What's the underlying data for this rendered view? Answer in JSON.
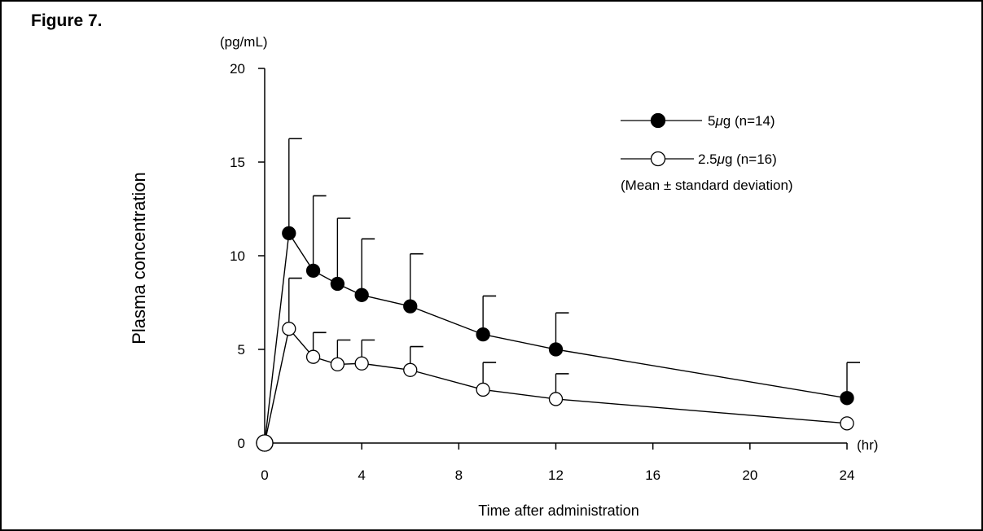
{
  "figure_label": "Figure 7.",
  "chart_data": {
    "type": "line",
    "title": "",
    "xlabel": "Time after administration",
    "ylabel": "Plasma concentration",
    "x_unit": "(hr)",
    "y_unit": "(pg/mL)",
    "xlim": [
      0,
      24
    ],
    "ylim": [
      0,
      20
    ],
    "x_ticks": [
      0,
      4,
      8,
      12,
      16,
      20,
      24
    ],
    "y_ticks": [
      0,
      5,
      10,
      15,
      20
    ],
    "x_tick_labels": [
      "0",
      "4",
      "8",
      "12",
      "16",
      "20",
      "24"
    ],
    "y_tick_labels": [
      "0",
      "5",
      "10",
      "15",
      "20"
    ],
    "grid": false,
    "legend_position": "top-right",
    "legend_note": "(Mean ± standard deviation)",
    "series": [
      {
        "name": "5μg (n=14)",
        "label_prefix": "5",
        "label_unit": "μ",
        "label_suffix": "g (n=14)",
        "marker": "filled-circle",
        "x": [
          0,
          1,
          2,
          3,
          4,
          6,
          9,
          12,
          24
        ],
        "values": [
          0,
          11.2,
          9.2,
          8.5,
          7.9,
          7.3,
          5.8,
          5.0,
          2.4
        ],
        "sd": [
          0,
          5.05,
          4.0,
          3.5,
          3.0,
          2.8,
          2.05,
          1.95,
          1.9
        ]
      },
      {
        "name": "2.5μg (n=16)",
        "label_prefix": "2.5",
        "label_unit": "μ",
        "label_suffix": "g (n=16)",
        "marker": "open-circle",
        "x": [
          0,
          1,
          2,
          3,
          4,
          6,
          9,
          12,
          24
        ],
        "values": [
          0,
          6.1,
          4.6,
          4.2,
          4.25,
          3.9,
          2.85,
          2.35,
          1.05
        ],
        "sd": [
          0,
          2.7,
          1.3,
          1.3,
          1.25,
          1.25,
          1.45,
          1.35,
          0
        ]
      }
    ]
  }
}
